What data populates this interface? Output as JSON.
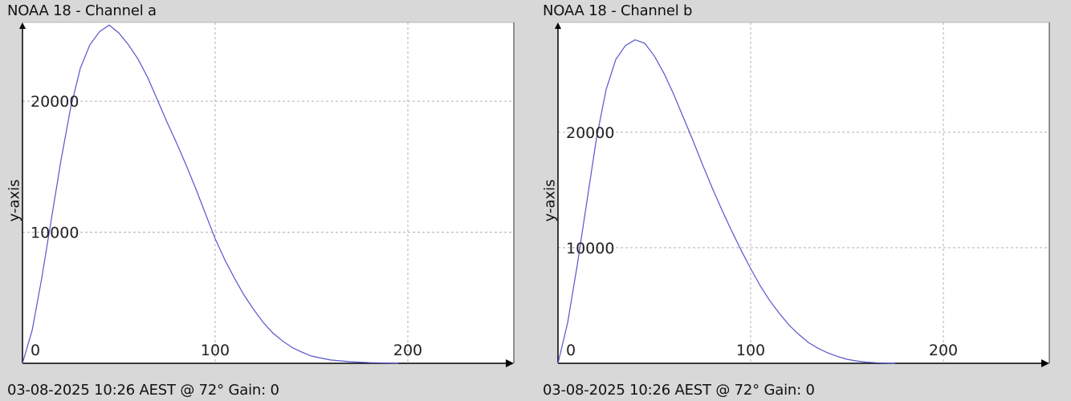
{
  "charts": [
    {
      "title": "NOAA 18 - Channel a",
      "footer": "03-08-2025 10:26 AEST @ 72° Gain: 0",
      "ylabel": "y-axis"
    },
    {
      "title": "NOAA 18 - Channel b",
      "footer": "03-08-2025 10:26 AEST @ 72° Gain: 0",
      "ylabel": "y-axis"
    }
  ],
  "chart_data": [
    {
      "type": "line",
      "title": "NOAA 18 - Channel a",
      "ylabel": "y-axis",
      "xlabel": "",
      "xlim": [
        0,
        255
      ],
      "ylim": [
        0,
        26000
      ],
      "x_ticks": [
        0,
        100,
        200
      ],
      "y_ticks": [
        10000,
        20000
      ],
      "grid": true,
      "series": [
        {
          "color": "#5555cc",
          "x": [
            0,
            5,
            10,
            15,
            20,
            25,
            30,
            35,
            40,
            45,
            50,
            55,
            60,
            65,
            70,
            75,
            80,
            85,
            90,
            95,
            100,
            105,
            110,
            115,
            120,
            125,
            130,
            135,
            140,
            145,
            150,
            155,
            160,
            170,
            180,
            190,
            195
          ],
          "y": [
            0,
            2500,
            6500,
            11000,
            15500,
            19500,
            22500,
            24300,
            25300,
            25800,
            25200,
            24300,
            23200,
            21800,
            20100,
            18400,
            16800,
            15100,
            13300,
            11400,
            9500,
            7900,
            6500,
            5200,
            4100,
            3100,
            2300,
            1700,
            1200,
            850,
            550,
            400,
            250,
            120,
            50,
            20,
            0
          ]
        }
      ]
    },
    {
      "type": "line",
      "title": "NOAA 18 - Channel b",
      "ylabel": "y-axis",
      "xlabel": "",
      "xlim": [
        0,
        255
      ],
      "ylim": [
        0,
        29500
      ],
      "x_ticks": [
        0,
        100,
        200
      ],
      "y_ticks": [
        10000,
        20000
      ],
      "grid": true,
      "series": [
        {
          "color": "#5555cc",
          "x": [
            0,
            5,
            10,
            15,
            20,
            25,
            30,
            35,
            40,
            45,
            50,
            55,
            60,
            65,
            70,
            75,
            80,
            85,
            90,
            95,
            100,
            105,
            110,
            115,
            120,
            125,
            130,
            135,
            140,
            145,
            150,
            155,
            160,
            165,
            170,
            175
          ],
          "y": [
            0,
            3500,
            8500,
            14000,
            19500,
            23700,
            26300,
            27500,
            28000,
            27700,
            26600,
            25100,
            23300,
            21300,
            19300,
            17200,
            15200,
            13300,
            11500,
            9800,
            8200,
            6700,
            5400,
            4300,
            3300,
            2500,
            1800,
            1300,
            900,
            600,
            350,
            200,
            100,
            50,
            20,
            0
          ]
        }
      ]
    }
  ]
}
